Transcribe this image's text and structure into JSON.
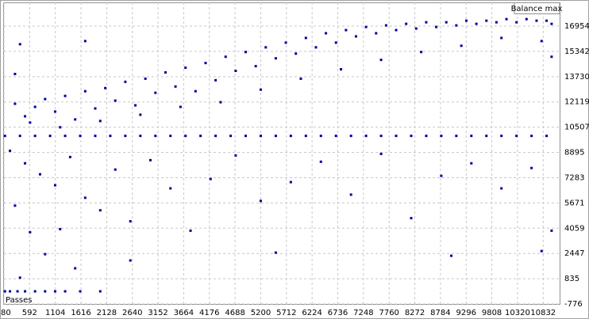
{
  "chart_data": {
    "type": "scatter",
    "y_label": "Balance max",
    "x_label": "Passes",
    "color": "#00009c",
    "grid": true,
    "xlim": [
      80,
      11160
    ],
    "ylim": [
      -776,
      18470
    ],
    "xticks": [
      80,
      592,
      1104,
      1616,
      2128,
      2640,
      3152,
      3664,
      4176,
      4688,
      5200,
      5712,
      6224,
      6736,
      7248,
      7760,
      8272,
      8784,
      9296,
      9808,
      10320,
      10832
    ],
    "yticks": [
      16954,
      15342,
      13730,
      12119,
      10507,
      8895,
      7283,
      5671,
      4059,
      2447,
      835,
      -776
    ],
    "x": [
      100,
      400,
      700,
      1000,
      1300,
      1600,
      1900,
      2200,
      2500,
      2800,
      3100,
      3400,
      3700,
      4000,
      4300,
      4600,
      4900,
      5200,
      5500,
      5800,
      6100,
      6400,
      6700,
      7000,
      7300,
      7600,
      7900,
      8200,
      8500,
      8800,
      9100,
      9400,
      9700,
      10000,
      10300,
      10600,
      10900,
      100,
      200,
      350,
      500,
      700,
      900,
      1100,
      1300,
      1600,
      2000,
      300,
      500,
      700,
      900,
      1100,
      1300,
      1500,
      1700,
      1900,
      2100,
      2300,
      2500,
      2700,
      2900,
      3100,
      3300,
      3500,
      3700,
      3900,
      4100,
      4300,
      4500,
      4700,
      4900,
      5100,
      5300,
      5500,
      5700,
      5900,
      6100,
      6300,
      6500,
      6700,
      6900,
      7100,
      7300,
      7500,
      7700,
      7900,
      8100,
      8300,
      8500,
      8700,
      8900,
      9100,
      9300,
      9500,
      9700,
      9900,
      10100,
      10300,
      10500,
      10700,
      10900,
      11000,
      600,
      1200,
      2000,
      2800,
      3600,
      4400,
      5200,
      6000,
      6800,
      7600,
      8400,
      9200,
      10000,
      10800,
      11000,
      200,
      500,
      800,
      1100,
      1400,
      1700,
      2000,
      2300,
      2600,
      3000,
      3400,
      3800,
      4200,
      4700,
      5200,
      5800,
      6400,
      7000,
      7600,
      8200,
      8800,
      9400,
      10000,
      10600,
      11000,
      300,
      600,
      900,
      1200,
      1500,
      400,
      2600,
      5500,
      9000,
      10800,
      400,
      300,
      1700
    ],
    "values": [
      9950,
      9950,
      9950,
      9950,
      9950,
      9950,
      9950,
      9950,
      9950,
      9950,
      9950,
      9950,
      9950,
      9950,
      9950,
      9950,
      9950,
      9950,
      9950,
      9950,
      9950,
      9950,
      9950,
      9950,
      9950,
      9950,
      9950,
      9950,
      9950,
      9950,
      9950,
      9950,
      9950,
      9950,
      9950,
      9950,
      9950,
      30,
      30,
      30,
      30,
      30,
      30,
      30,
      30,
      30,
      30,
      12000,
      11200,
      11800,
      12300,
      11500,
      12500,
      11000,
      12800,
      11700,
      13000,
      12200,
      13400,
      11900,
      13600,
      12700,
      14000,
      13100,
      14300,
      12800,
      14600,
      13500,
      15000,
      14100,
      15300,
      14400,
      15600,
      14900,
      15900,
      15200,
      16200,
      15600,
      16500,
      15900,
      16700,
      16300,
      16900,
      16500,
      17000,
      16700,
      17100,
      16800,
      17200,
      16900,
      17200,
      17000,
      17300,
      17100,
      17300,
      17200,
      17400,
      17200,
      17400,
      17300,
      17300,
      17100,
      10800,
      10500,
      10900,
      11300,
      11800,
      12100,
      12900,
      13600,
      14200,
      14800,
      15300,
      15700,
      16200,
      16000,
      15000,
      9000,
      8200,
      7500,
      6800,
      8600,
      6000,
      5200,
      7800,
      4500,
      8400,
      6600,
      3900,
      7200,
      8700,
      5800,
      7000,
      8300,
      6200,
      8800,
      4700,
      7400,
      8200,
      6600,
      7900,
      3900,
      5500,
      3800,
      2400,
      4000,
      1500,
      900,
      2000,
      2500,
      2300,
      2600,
      15800,
      13900,
      16000
    ]
  }
}
